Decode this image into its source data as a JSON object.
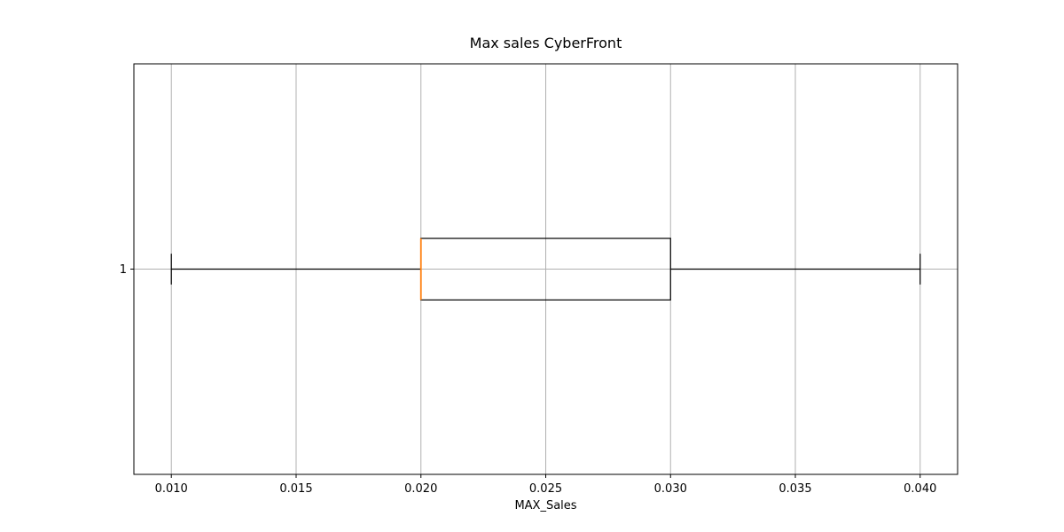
{
  "chart_data": {
    "type": "boxplot",
    "orientation": "horizontal",
    "title": "Max sales CyberFront",
    "xlabel": "MAX_Sales",
    "ylabel": "",
    "xlim": [
      0.0085,
      0.0415
    ],
    "x_ticks": [
      "0.010",
      "0.015",
      "0.020",
      "0.025",
      "0.030",
      "0.035",
      "0.040"
    ],
    "y_ticks": [
      "1"
    ],
    "grid": true,
    "boxes": [
      {
        "category": "1",
        "whisker_low": 0.01,
        "q1": 0.02,
        "median": 0.02,
        "q3": 0.03,
        "whisker_high": 0.04
      }
    ],
    "colors": {
      "box": "#000000",
      "median": "#ff7f0e",
      "grid": "#b0b0b0"
    }
  }
}
